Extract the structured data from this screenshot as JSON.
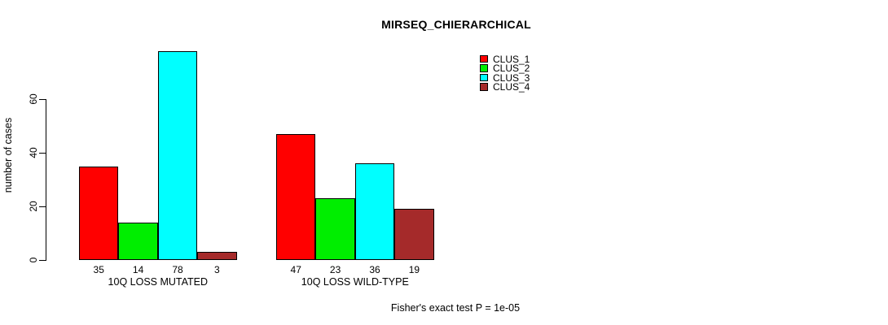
{
  "title": "MIRSEQ_CHIERARCHICAL",
  "ylabel": "number of cases",
  "footer": "Fisher's exact test P = 1e-05",
  "chart_data": {
    "type": "bar",
    "title": "MIRSEQ_CHIERARCHICAL",
    "xlabel": "",
    "ylabel": "number of cases",
    "categories": [
      "10Q LOSS MUTATED",
      "10Q LOSS WILD-TYPE"
    ],
    "series": [
      {
        "name": "CLUS_1",
        "color": "#ff0000",
        "values": [
          35,
          47
        ]
      },
      {
        "name": "CLUS_2",
        "color": "#00ee00",
        "values": [
          14,
          23
        ]
      },
      {
        "name": "CLUS_3",
        "color": "#00ffff",
        "values": [
          78,
          36
        ]
      },
      {
        "name": "CLUS_4",
        "color": "#a52a2a",
        "values": [
          3,
          19
        ]
      }
    ],
    "yticks": [
      0,
      20,
      40,
      60
    ],
    "ylim": [
      0,
      78
    ],
    "grid": false,
    "bar_value_labels_shown": true,
    "legend_position": "top-right",
    "bar_border_color": "#000000",
    "annotation": "Fisher's exact test P = 1e-05"
  }
}
